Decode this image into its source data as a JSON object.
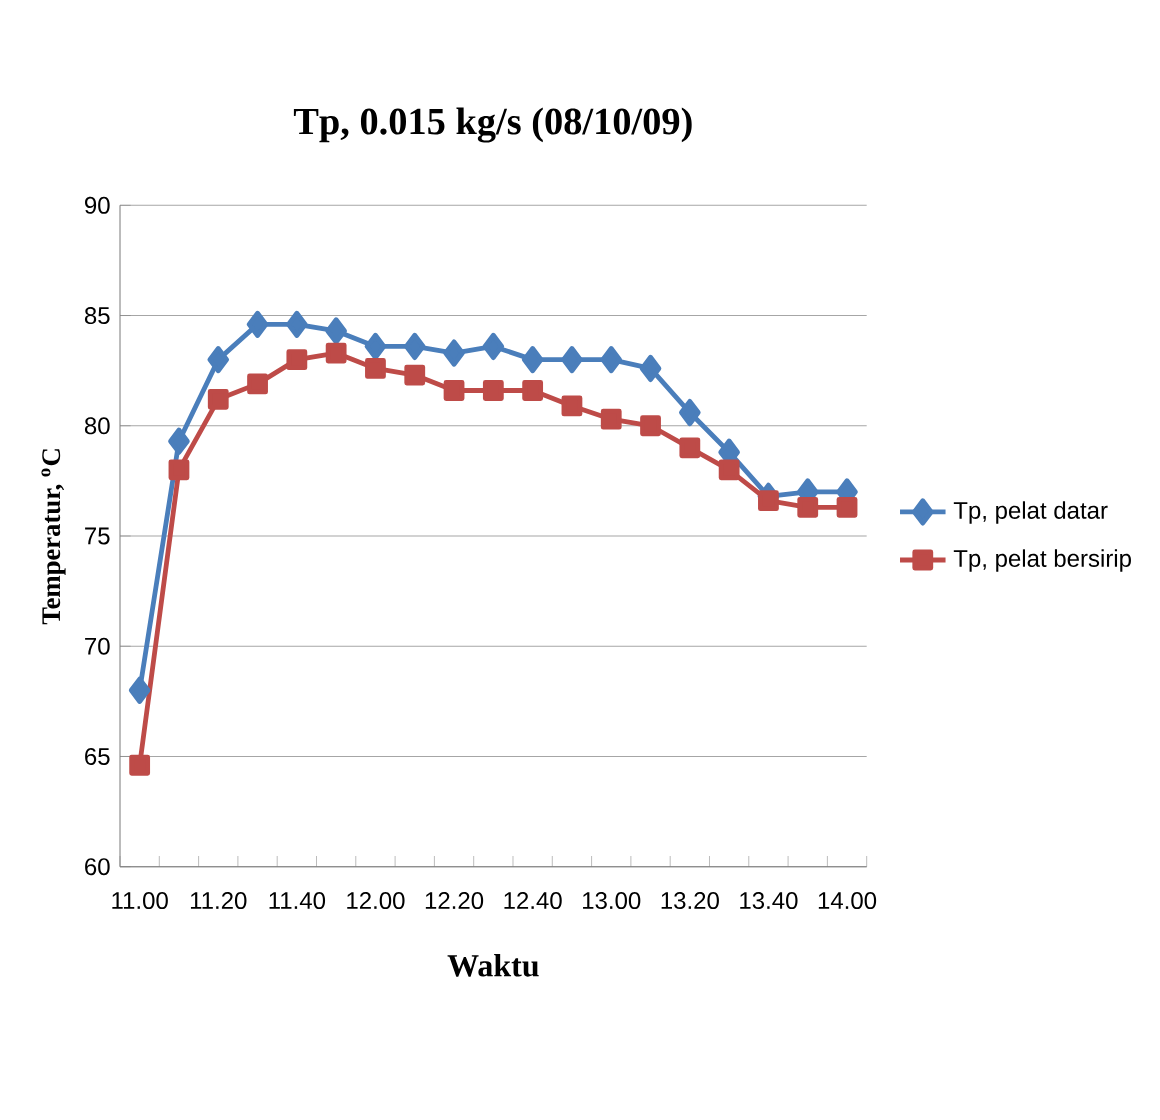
{
  "chart_data": {
    "type": "line",
    "title": "Tp, 0.015 kg/s (08/10/09)",
    "xlabel": "Waktu",
    "ylabel": "Temperatur, $^{o}$C",
    "categories": [
      "11.00",
      null,
      "11.20",
      null,
      "11.40",
      null,
      "12.00",
      null,
      "12.20",
      null,
      "12.40",
      null,
      "13.00",
      null,
      "13.20",
      null,
      "13.40",
      null,
      "14.00"
    ],
    "series": [
      {
        "name": "Tp, pelat datar",
        "color": "#4a7ebb",
        "marker": "diamond",
        "values": [
          68,
          79.3,
          83,
          84.6,
          84.6,
          84.3,
          83.6,
          83.6,
          83.3,
          83.6,
          83,
          83,
          83,
          82.6,
          80.6,
          78.8,
          76.8,
          77,
          77
        ]
      },
      {
        "name": "Tp, pelat bersirip",
        "color": "#be4b48",
        "marker": "square",
        "values": [
          64.6,
          78,
          81.2,
          81.9,
          83,
          83.3,
          82.6,
          82.3,
          81.6,
          81.6,
          81.6,
          80.9,
          80.3,
          80,
          79,
          78,
          76.6,
          76.3,
          76.3
        ]
      }
    ],
    "ylim": [
      60,
      90
    ],
    "yticks": [
      60,
      65,
      70,
      75,
      80,
      85,
      90
    ],
    "grid": "y",
    "legend": "right"
  }
}
